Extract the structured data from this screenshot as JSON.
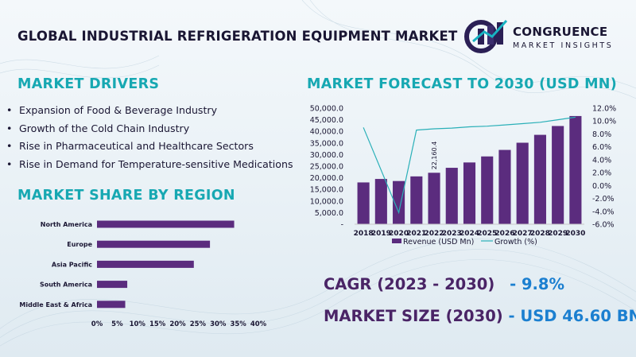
{
  "page": {
    "title": "GLOBAL INDUSTRIAL REFRIGERATION EQUIPMENT MARKET",
    "logo": {
      "name": "CONGRUENCE",
      "subtitle": "MARKET INSIGHTS"
    }
  },
  "drivers": {
    "heading": "MARKET DRIVERS",
    "items": [
      "Expansion of Food & Beverage Industry",
      "Growth of the Cold Chain Industry",
      "Rise in Pharmaceutical and Healthcare Sectors",
      "Rise in Demand for Temperature-sensitive Medications"
    ]
  },
  "stats": {
    "cagr_label": "CAGR (2023 - 2030)",
    "cagr_value": "- 9.8%",
    "size_label": "MARKET SIZE (2030)",
    "size_value": "- USD 46.60 BN"
  },
  "colors": {
    "bar": "#5b2c7e",
    "line": "#2ab0b8",
    "heading": "#17a8b2",
    "title": "#1a1633"
  },
  "chart_data": [
    {
      "type": "bar",
      "title": "MARKET FORECAST TO 2030 (USD MN)",
      "categories": [
        "2018",
        "2019",
        "2020",
        "2021",
        "2022",
        "2023",
        "2024",
        "2025",
        "2026",
        "2027",
        "2028",
        "2029",
        "2030"
      ],
      "series": [
        {
          "name": "Revenue (USD Mn)",
          "type": "bar",
          "values": [
            18000,
            19500,
            18600,
            20600,
            22160.4,
            24300,
            26600,
            29200,
            32000,
            35100,
            38500,
            42300,
            46600
          ]
        },
        {
          "name": "Growth (%)",
          "type": "line",
          "axis": "right",
          "values": [
            9.0,
            null,
            -4.2,
            8.6,
            8.8,
            8.9,
            9.1,
            9.2,
            9.4,
            9.6,
            9.8,
            10.2,
            10.6
          ]
        }
      ],
      "data_label": {
        "index": 4,
        "text": "22,160.4"
      },
      "ylim": [
        0,
        50000
      ],
      "yticks": [
        "-",
        "5,000.0",
        "10,000.0",
        "15,000.0",
        "20,000.0",
        "25,000.0",
        "30,000.0",
        "35,000.0",
        "40,000.0",
        "45,000.0",
        "50,000.0"
      ],
      "y2lim": [
        -6,
        12
      ],
      "y2ticks": [
        "-6.0%",
        "-4.0%",
        "-2.0%",
        "0.0%",
        "2.0%",
        "4.0%",
        "6.0%",
        "8.0%",
        "10.0%",
        "12.0%"
      ],
      "legend": [
        "Revenue (USD Mn)",
        "Growth (%)"
      ],
      "legend_position": "bottom"
    },
    {
      "type": "bar",
      "orientation": "horizontal",
      "title": "MARKET SHARE BY REGION",
      "categories": [
        "North America",
        "Europe",
        "Asia Pacific",
        "South America",
        "Middle East & Africa"
      ],
      "values": [
        34,
        28,
        24,
        7.5,
        7
      ],
      "xlim": [
        0,
        40
      ],
      "xticks": [
        "0%",
        "5%",
        "10%",
        "15%",
        "20%",
        "25%",
        "30%",
        "35%",
        "40%"
      ]
    }
  ]
}
